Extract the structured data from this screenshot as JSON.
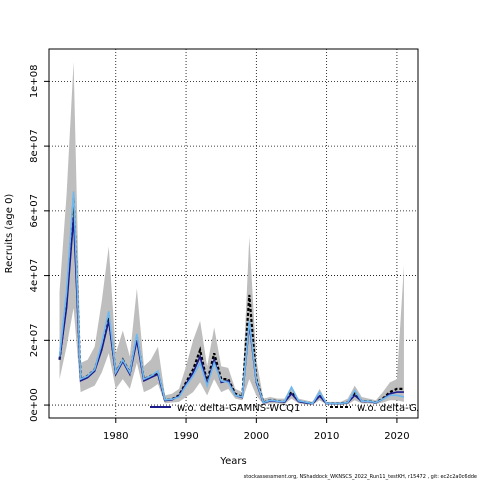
{
  "chart_data": {
    "type": "area",
    "xlabel": "Years",
    "ylabel": "Recruits (age 0)",
    "xlim": [
      1970.5,
      2023
    ],
    "ylim": [
      -4000000,
      110000000
    ],
    "xticks": [
      1980,
      1990,
      2000,
      2010,
      2020
    ],
    "xtick_labels": [
      "1980",
      "1990",
      "2000",
      "2010",
      "2020"
    ],
    "yticks": [
      0,
      20000000,
      40000000,
      60000000,
      80000000,
      100000000
    ],
    "ytick_labels": [
      "0e+00",
      "2e+07",
      "4e+07",
      "6e+07",
      "8e+07",
      "1e+08"
    ],
    "grid": true,
    "legend_position": "bottom",
    "x": [
      1972,
      1973,
      1974,
      1975,
      1976,
      1977,
      1978,
      1979,
      1980,
      1981,
      1982,
      1983,
      1984,
      1985,
      1986,
      1987,
      1988,
      1989,
      1990,
      1991,
      1992,
      1993,
      1994,
      1995,
      1996,
      1997,
      1998,
      1999,
      2000,
      2001,
      2002,
      2003,
      2004,
      2005,
      2006,
      2007,
      2008,
      2009,
      2010,
      2011,
      2012,
      2013,
      2014,
      2015,
      2016,
      2017,
      2018,
      2019,
      2020,
      2021
    ],
    "band": {
      "color": "#bebebe",
      "lower": [
        8000000,
        18000000,
        30000000,
        4000000,
        5000000,
        6000000,
        10000000,
        16000000,
        5000000,
        8000000,
        5000000,
        13000000,
        4000000,
        5000000,
        6500000,
        500000,
        800000,
        1000000,
        2500000,
        4000000,
        7000000,
        3000000,
        8000000,
        4000000,
        5000000,
        2000000,
        1500000,
        8000000,
        3000000,
        200000,
        500000,
        500000,
        300000,
        2000000,
        500000,
        200000,
        100000,
        1500000,
        100000,
        100000,
        100000,
        200000,
        1500000,
        500000,
        500000,
        300000,
        800000,
        1500000,
        1500000,
        1000000
      ],
      "upper": [
        35000000,
        65000000,
        106000000,
        13000000,
        14000000,
        18000000,
        32000000,
        49000000,
        16000000,
        23000000,
        15000000,
        36000000,
        12000000,
        14000000,
        18000000,
        3000000,
        3500000,
        5000000,
        12000000,
        20000000,
        26000000,
        12000000,
        24000000,
        12000000,
        11500000,
        5000000,
        4000000,
        52000000,
        14000000,
        2000000,
        2500000,
        2000000,
        2000000,
        6000000,
        2000000,
        1500000,
        1000000,
        5000000,
        1000000,
        1000000,
        1000000,
        2000000,
        6000000,
        2500000,
        2000000,
        1500000,
        4000000,
        7000000,
        8000000,
        43000000
      ]
    },
    "series": [
      {
        "name": "",
        "color": "#000000",
        "style": "dashed",
        "values": [
          14000000,
          32000000,
          64000000,
          8000000,
          9000000,
          11000000,
          18000000,
          27000000,
          10000000,
          14000000,
          10000000,
          21000000,
          8000000,
          9000000,
          10000000,
          1500000,
          1800000,
          3000000,
          7000000,
          11000000,
          17000000,
          7000000,
          16000000,
          8000000,
          8000000,
          3500000,
          2500000,
          34000000,
          8000000,
          800000,
          1500000,
          1200000,
          1000000,
          4000000,
          1200000,
          800000,
          500000,
          3000000,
          500000,
          500000,
          500000,
          800000,
          3500000,
          1200000,
          1200000,
          800000,
          2000000,
          4000000,
          5000000,
          5000000
        ]
      },
      {
        "name": "w.o. delta-GAMNS-WCQ1",
        "color": "#1a1a8c",
        "style": "solid",
        "values": [
          14000000,
          30000000,
          58000000,
          7500000,
          8500000,
          10500000,
          17000000,
          26000000,
          9500000,
          13500000,
          9500000,
          20000000,
          7500000,
          8500000,
          9500000,
          1400000,
          1600000,
          2800000,
          6500000,
          10000000,
          15000000,
          6500000,
          14000000,
          7000000,
          7500000,
          3000000,
          2300000,
          25000000,
          7000000,
          700000,
          1300000,
          1100000,
          900000,
          3500000,
          1100000,
          700000,
          450000,
          2800000,
          450000,
          450000,
          450000,
          700000,
          3000000,
          1100000,
          1100000,
          700000,
          1800000,
          3500000,
          4000000,
          4000000
        ]
      },
      {
        "name": "w.o. delta-GA",
        "color": "#6fb9f0",
        "style": "solid",
        "values": [
          15000000,
          35000000,
          66000000,
          8000000,
          9000000,
          11000000,
          19000000,
          29000000,
          10000000,
          14000000,
          10000000,
          22000000,
          8000000,
          9000000,
          10500000,
          1600000,
          1800000,
          2500000,
          6000000,
          9000000,
          13000000,
          6000000,
          13000000,
          7500000,
          7000000,
          3000000,
          2500000,
          26000000,
          7500000,
          800000,
          1500000,
          1200000,
          1100000,
          5500000,
          1300000,
          900000,
          500000,
          4000000,
          500000,
          500000,
          500000,
          800000,
          4500000,
          1200000,
          1200000,
          800000,
          1800000,
          3000000,
          3000000,
          2500000
        ]
      }
    ]
  },
  "footer": {
    "note": "stockassessment.org, NShaddock_WKNSCS_2022_Run11_testKH, r15472 , git: ec2c2a0c6dde"
  }
}
